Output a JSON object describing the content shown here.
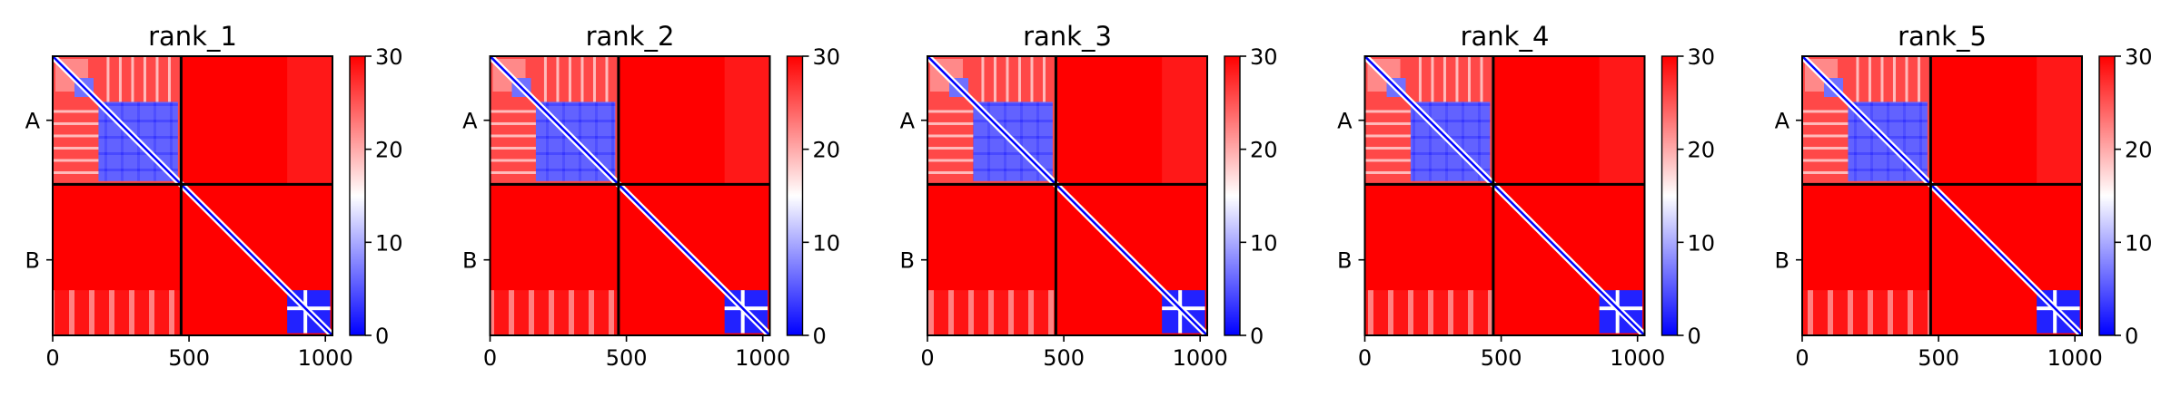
{
  "chart_data": [
    {
      "type": "heatmap",
      "title": "rank_1",
      "chains": [
        {
          "label": "A",
          "start": 0,
          "end": 471
        },
        {
          "label": "B",
          "start": 471,
          "end": 1026
        }
      ],
      "xticks": [
        0,
        500,
        1000
      ],
      "xtick_labels": [
        "0",
        "500",
        "1000"
      ],
      "xlim": [
        0,
        1026
      ],
      "colorbar": {
        "ticks": [
          0,
          10,
          20,
          30
        ],
        "tick_labels": [
          "0",
          "10",
          "20",
          "30"
        ],
        "range": [
          0,
          30
        ],
        "colors": [
          "#0000ff",
          "#ffffff",
          "#ff0000"
        ]
      },
      "blue_blocks": [
        {
          "start": 168,
          "end": 471
        },
        {
          "start": 860,
          "end": 1026
        }
      ],
      "self_band_widths": [
        0.8,
        1.0,
        1.3,
        0.7
      ]
    },
    {
      "type": "heatmap",
      "title": "rank_2",
      "chains": [
        {
          "label": "A",
          "start": 0,
          "end": 471
        },
        {
          "label": "B",
          "start": 471,
          "end": 1026
        }
      ],
      "xticks": [
        0,
        500,
        1000
      ],
      "xtick_labels": [
        "0",
        "500",
        "1000"
      ],
      "xlim": [
        0,
        1026
      ],
      "colorbar": {
        "ticks": [
          0,
          10,
          20,
          30
        ],
        "tick_labels": [
          "0",
          "10",
          "20",
          "30"
        ],
        "range": [
          0,
          30
        ],
        "colors": [
          "#0000ff",
          "#ffffff",
          "#ff0000"
        ]
      },
      "blue_blocks": [
        {
          "start": 168,
          "end": 471
        },
        {
          "start": 860,
          "end": 1026
        }
      ],
      "self_band_widths": [
        0.8,
        1.0,
        1.2,
        0.7
      ]
    },
    {
      "type": "heatmap",
      "title": "rank_3",
      "chains": [
        {
          "label": "A",
          "start": 0,
          "end": 471
        },
        {
          "label": "B",
          "start": 471,
          "end": 1026
        }
      ],
      "xticks": [
        0,
        500,
        1000
      ],
      "xtick_labels": [
        "0",
        "500",
        "1000"
      ],
      "xlim": [
        0,
        1026
      ],
      "colorbar": {
        "ticks": [
          0,
          10,
          20,
          30
        ],
        "tick_labels": [
          "0",
          "10",
          "20",
          "30"
        ],
        "range": [
          0,
          30
        ],
        "colors": [
          "#0000ff",
          "#ffffff",
          "#ff0000"
        ]
      },
      "blue_blocks": [
        {
          "start": 168,
          "end": 471
        },
        {
          "start": 860,
          "end": 1026
        }
      ],
      "self_band_widths": [
        0.8,
        1.0,
        1.2,
        0.7
      ]
    },
    {
      "type": "heatmap",
      "title": "rank_4",
      "chains": [
        {
          "label": "A",
          "start": 0,
          "end": 471
        },
        {
          "label": "B",
          "start": 471,
          "end": 1026
        }
      ],
      "xticks": [
        0,
        500,
        1000
      ],
      "xtick_labels": [
        "0",
        "500",
        "1000"
      ],
      "xlim": [
        0,
        1026
      ],
      "colorbar": {
        "ticks": [
          0,
          10,
          20,
          30
        ],
        "tick_labels": [
          "0",
          "10",
          "20",
          "30"
        ],
        "range": [
          0,
          30
        ],
        "colors": [
          "#0000ff",
          "#ffffff",
          "#ff0000"
        ]
      },
      "blue_blocks": [
        {
          "start": 168,
          "end": 471
        },
        {
          "start": 860,
          "end": 1026
        }
      ],
      "self_band_widths": [
        0.8,
        1.0,
        1.2,
        0.7
      ]
    },
    {
      "type": "heatmap",
      "title": "rank_5",
      "chains": [
        {
          "label": "A",
          "start": 0,
          "end": 471
        },
        {
          "label": "B",
          "start": 471,
          "end": 1026
        }
      ],
      "xticks": [
        0,
        500,
        1000
      ],
      "xtick_labels": [
        "0",
        "500",
        "1000"
      ],
      "xlim": [
        0,
        1026
      ],
      "colorbar": {
        "ticks": [
          0,
          10,
          20,
          30
        ],
        "tick_labels": [
          "0",
          "10",
          "20",
          "30"
        ],
        "range": [
          0,
          30
        ],
        "colors": [
          "#0000ff",
          "#ffffff",
          "#ff0000"
        ]
      },
      "blue_blocks": [
        {
          "start": 168,
          "end": 471
        },
        {
          "start": 860,
          "end": 1026
        }
      ],
      "self_band_widths": [
        0.8,
        1.0,
        1.2,
        0.7
      ]
    }
  ]
}
